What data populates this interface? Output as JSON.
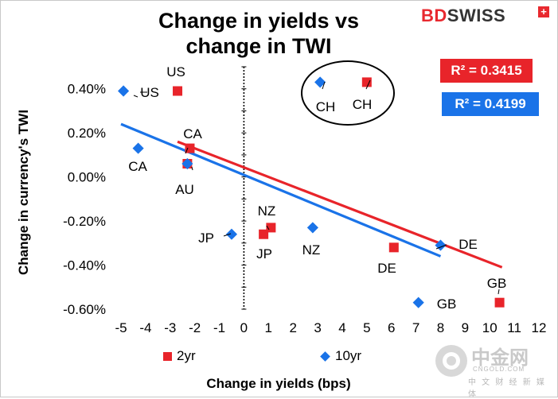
{
  "title_line1": "Change in yields vs",
  "title_line2": "change in TWI",
  "logo": {
    "bd": "BD",
    "swiss": "SWISS",
    "plus": "+"
  },
  "r2_boxes": {
    "twoyr": {
      "text": "R² = 0.3415",
      "color": "#e8242a"
    },
    "tenyr": {
      "text": "R² = 0.4199",
      "color": "#1a73e8"
    }
  },
  "legend": {
    "twoyr": "2yr",
    "tenyr": "10yr"
  },
  "watermark": {
    "chinese": "中金网",
    "domain": "CNGOLD.COM",
    "sub": "中 文 财 经 新 媒 体"
  },
  "chart_data": {
    "type": "scatter",
    "xlabel": "Change in yields (bps)",
    "ylabel": "Change in currency's  TWI",
    "xlim": [
      -5,
      12
    ],
    "ylim": [
      -0.006,
      0.005
    ],
    "x_ticks": [
      "-5",
      "-4",
      "-3",
      "-2",
      "-1",
      "0",
      "1",
      "2",
      "3",
      "4",
      "5",
      "6",
      "7",
      "8",
      "9",
      "10",
      "11",
      "12"
    ],
    "y_ticks": [
      {
        "v": 0.004,
        "label": "0.40%"
      },
      {
        "v": 0.002,
        "label": "0.20%"
      },
      {
        "v": 0.0,
        "label": "0.00%"
      },
      {
        "v": -0.002,
        "label": "-0.20%"
      },
      {
        "v": -0.004,
        "label": "-0.40%"
      },
      {
        "v": -0.006,
        "label": "-0.60%"
      }
    ],
    "series": [
      {
        "name": "2yr",
        "marker": "square",
        "color": "#e8242a",
        "points": [
          {
            "label": "US",
            "x": -2.7,
            "y": 0.0039
          },
          {
            "label": "CA",
            "x": -2.2,
            "y": 0.0013
          },
          {
            "label": "AU",
            "x": -2.3,
            "y": 0.0006
          },
          {
            "label": "JP",
            "x": 0.8,
            "y": -0.0026
          },
          {
            "label": "NZ",
            "x": 1.1,
            "y": -0.0023
          },
          {
            "label": "CH",
            "x": 5.0,
            "y": 0.0043
          },
          {
            "label": "DE",
            "x": 6.1,
            "y": -0.0032
          },
          {
            "label": "GB",
            "x": 10.4,
            "y": -0.0057
          }
        ],
        "trendline": {
          "x": [
            -2.7,
            10.5
          ],
          "y": [
            0.0016,
            -0.0041
          ]
        }
      },
      {
        "name": "10yr",
        "marker": "diamond",
        "color": "#1a73e8",
        "points": [
          {
            "label": "US",
            "x": -4.9,
            "y": 0.0039
          },
          {
            "label": "CA",
            "x": -4.3,
            "y": 0.0013
          },
          {
            "label": "AU",
            "x": -2.3,
            "y": 0.0006
          },
          {
            "label": "JP",
            "x": -0.5,
            "y": -0.0026
          },
          {
            "label": "NZ",
            "x": 2.8,
            "y": -0.0023
          },
          {
            "label": "CH",
            "x": 3.1,
            "y": 0.0043
          },
          {
            "label": "DE",
            "x": 8.0,
            "y": -0.0031
          },
          {
            "label": "GB",
            "x": 7.1,
            "y": -0.0057
          }
        ],
        "trendline": {
          "x": [
            -5.0,
            8.0
          ],
          "y": [
            0.0024,
            -0.0036
          ]
        }
      }
    ]
  }
}
